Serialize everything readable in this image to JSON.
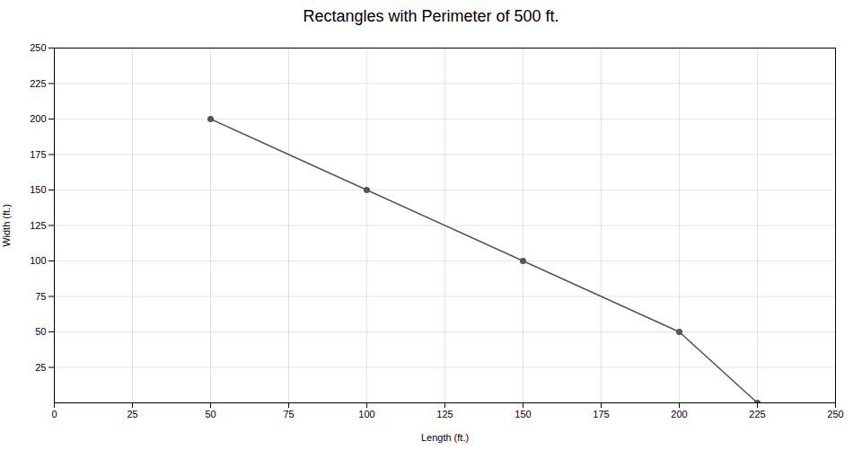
{
  "chart_data": {
    "type": "line",
    "title": "Rectangles with Perimeter of 500 ft.",
    "xlabel": "Length (ft.)",
    "ylabel": "Width (ft.)",
    "x": [
      50,
      100,
      150,
      200,
      225
    ],
    "values": [
      200,
      150,
      100,
      50,
      0
    ],
    "color": "#555555",
    "marker": "o",
    "xlim": [
      0,
      250
    ],
    "ylim": [
      0,
      250
    ],
    "xticks": [
      0,
      25,
      50,
      75,
      100,
      125,
      150,
      175,
      200,
      225,
      250
    ],
    "yticks": [
      25,
      50,
      75,
      100,
      125,
      150,
      175,
      200,
      225,
      250
    ],
    "grid": true
  }
}
